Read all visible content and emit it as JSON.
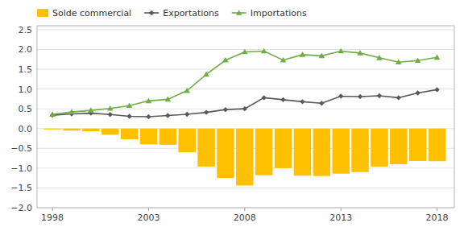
{
  "chart_data": {
    "type": "bar",
    "x": [
      1998,
      1999,
      2000,
      2001,
      2002,
      2003,
      2004,
      2005,
      2006,
      2007,
      2008,
      2009,
      2010,
      2011,
      2012,
      2013,
      2014,
      2015,
      2016,
      2017,
      2018
    ],
    "series": [
      {
        "name": "Solde commercial",
        "type": "bar",
        "color": "#FFC000",
        "values": [
          -0.021,
          -0.05,
          -0.07,
          -0.155,
          -0.27,
          -0.4,
          -0.41,
          -0.6,
          -0.96,
          -1.25,
          -1.44,
          -1.18,
          -1.0,
          -1.19,
          -1.2,
          -1.14,
          -1.1,
          -0.96,
          -0.9,
          -0.82,
          -0.824
        ]
      },
      {
        "name": "Exportations",
        "type": "line",
        "color": "#595959",
        "marker": "diamond",
        "values": [
          0.339,
          0.37,
          0.39,
          0.355,
          0.31,
          0.3,
          0.33,
          0.36,
          0.41,
          0.48,
          0.5,
          0.78,
          0.73,
          0.68,
          0.64,
          0.82,
          0.81,
          0.83,
          0.78,
          0.9,
          0.984
        ]
      },
      {
        "name": "Importations",
        "type": "line",
        "color": "#70AD47",
        "marker": "triangle",
        "values": [
          0.36,
          0.42,
          0.46,
          0.51,
          0.58,
          0.7,
          0.74,
          0.96,
          1.37,
          1.73,
          1.94,
          1.96,
          1.73,
          1.87,
          1.84,
          1.96,
          1.91,
          1.79,
          1.68,
          1.72,
          1.8
        ]
      }
    ],
    "xlim": [
      1997.2,
      2018.9
    ],
    "xticks": [
      1998,
      2003,
      2008,
      2013,
      2018
    ],
    "ylim": [
      -2.0,
      2.6
    ],
    "yticks": [
      {
        "value": -2.0,
        "label": "−2.0"
      },
      {
        "value": -1.5,
        "label": "−1.5"
      },
      {
        "value": -1.0,
        "label": "−1.0"
      },
      {
        "value": -0.5,
        "label": "−0.5"
      },
      {
        "value": 0.0,
        "label": "0.0"
      },
      0.5,
      {
        "value": 1.0,
        "label": "1.0"
      },
      1.5,
      {
        "value": 2.0,
        "label": "2.0"
      },
      2.5
    ],
    "grid": true,
    "legend": "upper left"
  }
}
